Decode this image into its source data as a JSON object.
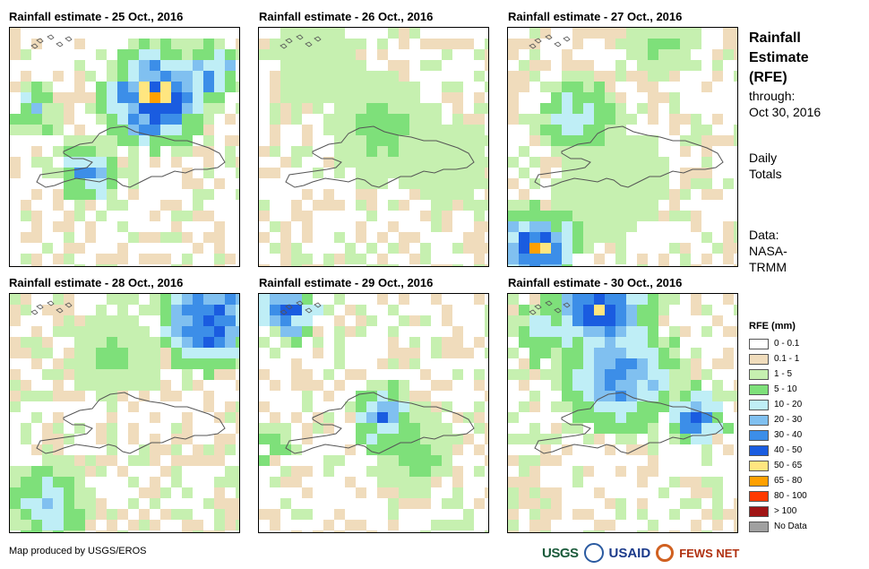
{
  "panels": [
    {
      "title": "Rainfall estimate - 25 Oct., 2016",
      "id": "oct25"
    },
    {
      "title": "Rainfall estimate - 26 Oct., 2016",
      "id": "oct26"
    },
    {
      "title": "Rainfall estimate - 27 Oct., 2016",
      "id": "oct27"
    },
    {
      "title": "Rainfall estimate - 28 Oct., 2016",
      "id": "oct28"
    },
    {
      "title": "Rainfall estimate - 29 Oct., 2016",
      "id": "oct29"
    },
    {
      "title": "Rainfall estimate - 30 Oct., 2016",
      "id": "oct30"
    }
  ],
  "side": {
    "title_line1": "Rainfall",
    "title_line2": "Estimate",
    "title_line3": "(RFE)",
    "through_label": "through:",
    "through_date": "Oct 30, 2016",
    "totals_line1": "Daily",
    "totals_line2": "Totals",
    "data_label": "Data:",
    "data_source_line1": "NASA-",
    "data_source_line2": "TRMM"
  },
  "legend": {
    "title": "RFE (mm)",
    "items": [
      {
        "label": "0 - 0.1",
        "color": "#ffffff"
      },
      {
        "label": "0.1 - 1",
        "color": "#f0dcbc"
      },
      {
        "label": "1 - 5",
        "color": "#c6f0b0"
      },
      {
        "label": "5 - 10",
        "color": "#7ee07a"
      },
      {
        "label": "10 - 20",
        "color": "#bfeef6"
      },
      {
        "label": "20 - 30",
        "color": "#80c0f0"
      },
      {
        "label": "30 - 40",
        "color": "#3c8ee8"
      },
      {
        "label": "40 - 50",
        "color": "#1a5ce0"
      },
      {
        "label": "50 - 65",
        "color": "#ffe680"
      },
      {
        "label": "65 - 80",
        "color": "#ffa000"
      },
      {
        "label": "80 - 100",
        "color": "#ff3a00"
      },
      {
        "label": "> 100",
        "color": "#a01414"
      },
      {
        "label": "No Data",
        "color": "#a0a0a0"
      }
    ]
  },
  "footer": {
    "credit": "Map produced by USGS/EROS",
    "logo_usgs": "USGS",
    "logo_usaid": "USAID",
    "logo_fews": "FEWS NET"
  }
}
